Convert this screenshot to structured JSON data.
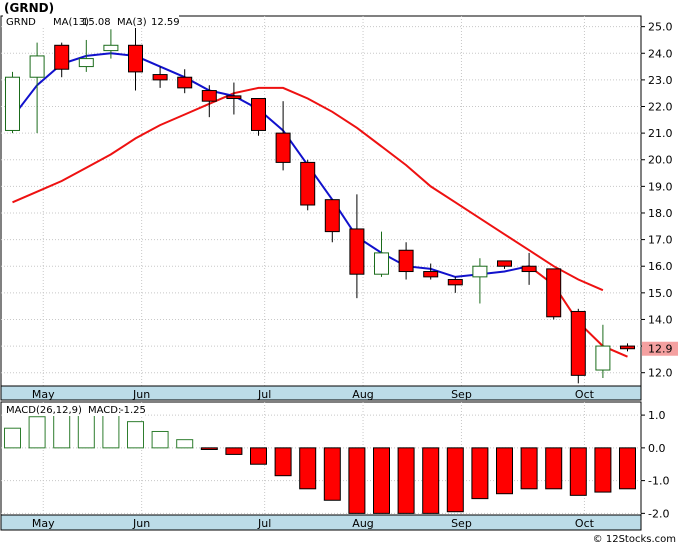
{
  "header": {
    "ticker": "(GRND)",
    "watermark": "© 12Stocks.com"
  },
  "chart_data": [
    {
      "type": "candlestick",
      "legend": [
        "GRND",
        "MA(13)",
        "15.08",
        "MA(3)",
        "12.59"
      ],
      "ma13_value_label": "15.08",
      "ma3_value_label": "12.59",
      "last_price_label": "12.9",
      "ylim": [
        11.5,
        25.4
      ],
      "yticks": [
        "12.0",
        "13.0",
        "14.0",
        "15.0",
        "16.0",
        "17.0",
        "18.0",
        "19.0",
        "20.0",
        "21.0",
        "22.0",
        "23.0",
        "24.0",
        "25.0"
      ],
      "months": [
        "May",
        "Jun",
        "Jul",
        "Aug",
        "Sep",
        "Oct"
      ],
      "month_positions": [
        1.25,
        5.25,
        10.25,
        14.25,
        18.25,
        23.25
      ],
      "candles": [
        {
          "o": 21.1,
          "h": 23.3,
          "l": 21.0,
          "c": 23.1
        },
        {
          "o": 23.1,
          "h": 24.4,
          "l": 21.0,
          "c": 23.9
        },
        {
          "o": 24.3,
          "h": 24.4,
          "l": 23.1,
          "c": 23.4
        },
        {
          "o": 23.5,
          "h": 24.5,
          "l": 23.3,
          "c": 23.8
        },
        {
          "o": 24.1,
          "h": 24.9,
          "l": 23.8,
          "c": 24.3
        },
        {
          "o": 24.3,
          "h": 25.1,
          "l": 22.6,
          "c": 23.3
        },
        {
          "o": 23.2,
          "h": 23.5,
          "l": 22.7,
          "c": 23.0
        },
        {
          "o": 23.1,
          "h": 23.4,
          "l": 22.5,
          "c": 22.7
        },
        {
          "o": 22.6,
          "h": 22.8,
          "l": 21.6,
          "c": 22.2
        },
        {
          "o": 22.4,
          "h": 22.9,
          "l": 21.7,
          "c": 22.3
        },
        {
          "o": 22.3,
          "h": 22.3,
          "l": 20.9,
          "c": 21.1
        },
        {
          "o": 21.0,
          "h": 22.2,
          "l": 19.6,
          "c": 19.9
        },
        {
          "o": 19.9,
          "h": 20.0,
          "l": 18.1,
          "c": 18.3
        },
        {
          "o": 18.5,
          "h": 18.5,
          "l": 16.9,
          "c": 17.3
        },
        {
          "o": 17.4,
          "h": 18.7,
          "l": 14.8,
          "c": 15.7
        },
        {
          "o": 15.7,
          "h": 17.3,
          "l": 15.6,
          "c": 16.5
        },
        {
          "o": 16.6,
          "h": 16.9,
          "l": 15.5,
          "c": 15.8
        },
        {
          "o": 15.8,
          "h": 16.1,
          "l": 15.5,
          "c": 15.6
        },
        {
          "o": 15.5,
          "h": 15.6,
          "l": 15.0,
          "c": 15.3
        },
        {
          "o": 15.6,
          "h": 16.3,
          "l": 14.6,
          "c": 16.0
        },
        {
          "o": 16.2,
          "h": 16.2,
          "l": 15.9,
          "c": 16.0
        },
        {
          "o": 16.0,
          "h": 16.5,
          "l": 15.3,
          "c": 15.8
        },
        {
          "o": 15.9,
          "h": 15.9,
          "l": 14.0,
          "c": 14.1
        },
        {
          "o": 14.3,
          "h": 14.4,
          "l": 11.6,
          "c": 11.9
        },
        {
          "o": 12.1,
          "h": 13.8,
          "l": 11.8,
          "c": 13.0
        },
        {
          "o": 13.0,
          "h": 13.1,
          "l": 12.8,
          "c": 12.9
        }
      ],
      "ma13": [
        [
          0,
          18.4
        ],
        [
          1,
          18.8
        ],
        [
          2,
          19.2
        ],
        [
          3,
          19.7
        ],
        [
          4,
          20.2
        ],
        [
          5,
          20.8
        ],
        [
          6,
          21.3
        ],
        [
          7,
          21.7
        ],
        [
          8,
          22.1
        ],
        [
          9,
          22.5
        ],
        [
          10,
          22.7
        ],
        [
          11,
          22.7
        ],
        [
          12,
          22.3
        ],
        [
          13,
          21.8
        ],
        [
          14,
          21.2
        ],
        [
          15,
          20.5
        ],
        [
          16,
          19.8
        ],
        [
          17,
          19.0
        ],
        [
          18,
          18.4
        ],
        [
          19,
          17.8
        ],
        [
          20,
          17.2
        ],
        [
          21,
          16.6
        ],
        [
          22,
          16.0
        ],
        [
          23,
          15.5
        ],
        [
          24,
          15.1
        ]
      ],
      "ma3": [
        [
          0,
          21.6
        ],
        [
          1,
          22.8
        ],
        [
          2,
          23.6
        ],
        [
          3,
          23.9
        ],
        [
          4,
          24.0
        ],
        [
          5,
          23.9
        ],
        [
          6,
          23.5
        ],
        [
          7,
          23.1
        ],
        [
          8,
          22.6
        ],
        [
          9,
          22.4
        ],
        [
          10,
          21.9
        ],
        [
          11,
          21.1
        ],
        [
          12,
          19.8
        ],
        [
          13,
          18.5
        ],
        [
          14,
          17.1
        ],
        [
          15,
          16.5
        ],
        [
          16,
          16.0
        ],
        [
          17,
          15.9
        ],
        [
          18,
          15.6
        ],
        [
          19,
          15.7
        ],
        [
          20,
          15.8
        ],
        [
          21,
          16.0
        ],
        [
          22,
          15.3
        ],
        [
          23,
          13.9
        ],
        [
          24,
          13.0
        ],
        [
          25,
          12.6
        ]
      ],
      "ma3_blue_until_index": 21
    },
    {
      "type": "bar",
      "legend": [
        "MACD(26,12,9)",
        "MACD:",
        "-1.25"
      ],
      "macd_value_label": "-1.25",
      "ylim": [
        -2.05,
        1.4
      ],
      "yticks": [
        "1.0",
        "0.0",
        "-1.0",
        "-2.0"
      ],
      "values": [
        0.6,
        0.95,
        1.02,
        1.05,
        1.0,
        0.8,
        0.5,
        0.25,
        -0.05,
        -0.2,
        -0.5,
        -0.85,
        -1.25,
        -1.6,
        -2.0,
        -2.0,
        -2.0,
        -2.0,
        -1.95,
        -1.55,
        -1.4,
        -1.25,
        -1.25,
        -1.45,
        -1.35,
        -1.25
      ],
      "colors": {
        "up": "#2e7d2e",
        "down": "#ff0000"
      }
    }
  ],
  "colors": {
    "panel_border": "#000000",
    "axis_band": "#bcdce8",
    "grid": "#c8c8c8",
    "ma13_line": "#ee1111",
    "ma3_line": "#1111cc",
    "candle_up_stroke": "#1a6b1a",
    "candle_down_fill": "#ff0000",
    "price_badge": "#f4a0a0"
  }
}
